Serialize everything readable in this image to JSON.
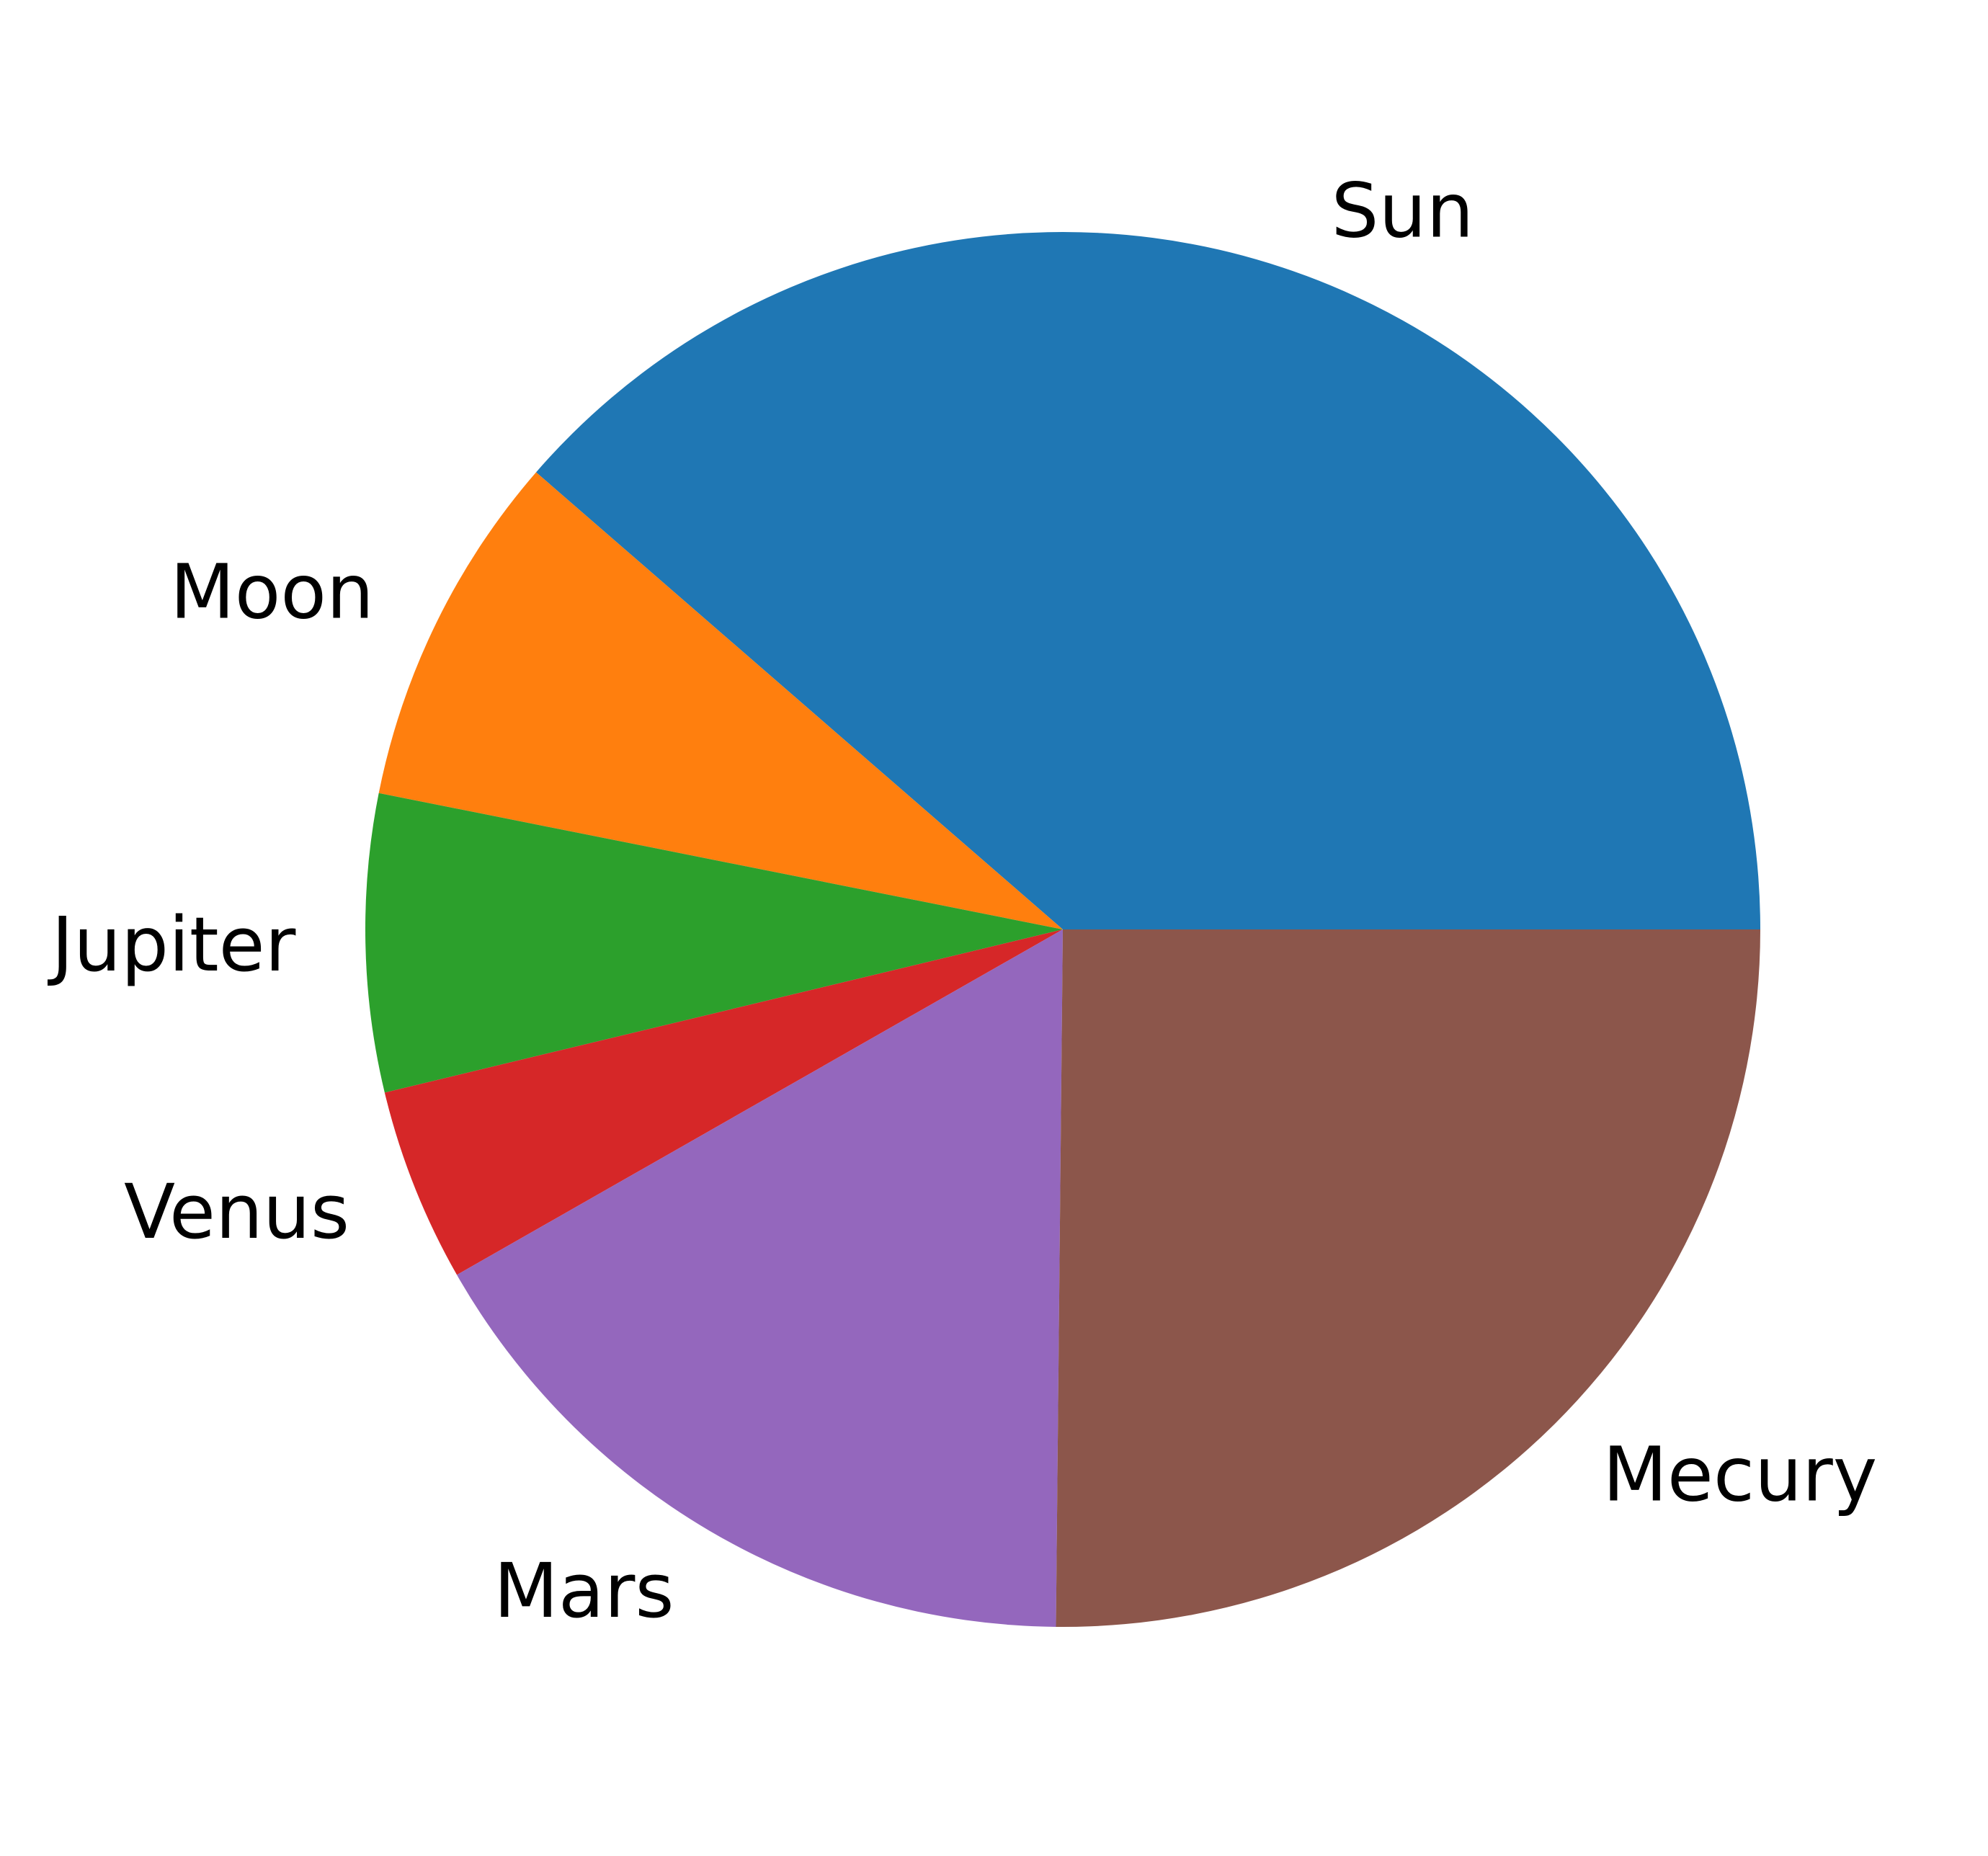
{
  "chart_data": {
    "type": "pie",
    "title": "",
    "start_angle_deg": 0,
    "direction": "counterclockwise",
    "slices": [
      {
        "label": "Sun",
        "value": 37.0,
        "color": "#1f77b4"
      },
      {
        "label": "Moon",
        "value": 7.9,
        "color": "#ff7f0e"
      },
      {
        "label": "Jupiter",
        "value": 6.6,
        "color": "#2ca02c"
      },
      {
        "label": "Venus",
        "value": 4.3,
        "color": "#d62728"
      },
      {
        "label": "Mars",
        "value": 15.9,
        "color": "#9467bd"
      },
      {
        "label": "Mecury",
        "value": 24.1,
        "color": "#8c564b"
      }
    ]
  }
}
